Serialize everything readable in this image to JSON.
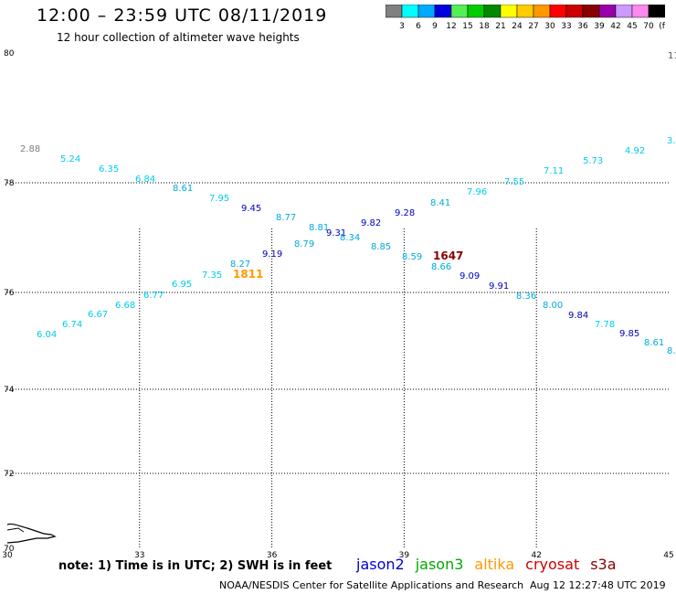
{
  "title": "12:00 – 23:59 UTC 08/11/2019",
  "subtitle": "12 hour collection of altimeter wave heights",
  "legend": {
    "colors": [
      "#808080",
      "#00ffff",
      "#00aaff",
      "#0000dd",
      "#55ee55",
      "#00cc00",
      "#008800",
      "#ffff00",
      "#ffcc00",
      "#ff9900",
      "#ff0000",
      "#cc0000",
      "#880000",
      "#9900aa",
      "#cc99ff",
      "#ff88ee",
      "#000000"
    ],
    "labels": [
      "3",
      "6",
      "9",
      "12",
      "15",
      "18",
      "21",
      "24",
      "27",
      "30",
      "33",
      "36",
      "39",
      "42",
      "45",
      "70",
      "(ft)"
    ]
  },
  "map": {
    "lon_ticks": [
      "30",
      "33",
      "36",
      "39",
      "42",
      "45"
    ],
    "lat_ticks": [
      "80",
      "78",
      "76",
      "74",
      "72",
      "70"
    ],
    "right_edge_label": "11",
    "lon_range": [
      30,
      45
    ],
    "lat_range": [
      70,
      80
    ]
  },
  "chart_data": {
    "type": "scatter",
    "x_axis": "longitude",
    "y_axis": "latitude",
    "points": [
      {
        "lon": 30.3,
        "lat": 77.2,
        "text": "2.88",
        "color": "#808080"
      },
      {
        "lon": 31.2,
        "lat": 76.9,
        "text": "5.24",
        "color": "#00ccee"
      },
      {
        "lon": 32.1,
        "lat": 76.7,
        "text": "6.35",
        "color": "#00ccee"
      },
      {
        "lon": 33.0,
        "lat": 76.55,
        "text": "6.84",
        "color": "#00ccee"
      },
      {
        "lon": 33.9,
        "lat": 76.35,
        "text": "8.61",
        "color": "#00aadd"
      },
      {
        "lon": 34.8,
        "lat": 76.15,
        "text": "7.95",
        "color": "#00ccee"
      },
      {
        "lon": 35.6,
        "lat": 75.95,
        "text": "9.45",
        "color": "#0000bb"
      },
      {
        "lon": 36.5,
        "lat": 75.8,
        "text": "8.77",
        "color": "#00aadd"
      },
      {
        "lon": 37.3,
        "lat": 75.7,
        "text": "8.81",
        "color": "#00aadd"
      },
      {
        "lon": 38.0,
        "lat": 75.6,
        "text": "9.31",
        "color": "#0000bb"
      },
      {
        "lon": 38.7,
        "lat": 75.78,
        "text": "9.82",
        "color": "#0000bb"
      },
      {
        "lon": 39.3,
        "lat": 75.92,
        "text": "9.28",
        "color": "#0000bb"
      },
      {
        "lon": 40.1,
        "lat": 76.1,
        "text": "8.41",
        "color": "#00aadd"
      },
      {
        "lon": 40.9,
        "lat": 76.3,
        "text": "7.96",
        "color": "#00ccee"
      },
      {
        "lon": 41.7,
        "lat": 76.5,
        "text": "7.55",
        "color": "#00ccee"
      },
      {
        "lon": 42.5,
        "lat": 76.75,
        "text": "7.11",
        "color": "#00ccee"
      },
      {
        "lon": 43.3,
        "lat": 76.95,
        "text": "5.73",
        "color": "#00ccee"
      },
      {
        "lon": 44.1,
        "lat": 77.15,
        "text": "4.92",
        "color": "#00ccee"
      },
      {
        "lon": 44.9,
        "lat": 77.3,
        "text": "3.",
        "color": "#00ccee"
      },
      {
        "lon": 30.5,
        "lat": 75.1,
        "text": "6.04",
        "color": "#00ccee"
      },
      {
        "lon": 31.2,
        "lat": 75.25,
        "text": "6.74",
        "color": "#00ccee"
      },
      {
        "lon": 31.9,
        "lat": 75.4,
        "text": "6.67",
        "color": "#00ccee"
      },
      {
        "lon": 32.6,
        "lat": 75.55,
        "text": "6.68",
        "color": "#00ccee"
      },
      {
        "lon": 33.3,
        "lat": 75.72,
        "text": "6.77",
        "color": "#00ccee"
      },
      {
        "lon": 34.0,
        "lat": 75.88,
        "text": "6.95",
        "color": "#00ccee"
      },
      {
        "lon": 34.7,
        "lat": 76.05,
        "text": "7.35",
        "color": "#00ccee"
      },
      {
        "lon": 35.4,
        "lat": 76.25,
        "text": "8.27",
        "color": "#00aadd"
      },
      {
        "lon": 35.3,
        "lat": 76.1,
        "text": "1811",
        "color": "#ff9900",
        "time": true
      },
      {
        "lon": 36.0,
        "lat": 76.45,
        "text": "9.19",
        "color": "#0000bb"
      },
      {
        "lon": 36.8,
        "lat": 76.63,
        "text": "8.79",
        "color": "#00aadd"
      },
      {
        "lon": 37.6,
        "lat": 76.82,
        "text": "8.34",
        "color": "#00aadd"
      },
      {
        "lon": 38.4,
        "lat": 76.95,
        "text": "8.85",
        "color": "#00aadd"
      },
      {
        "lon": 39.2,
        "lat": 77.05,
        "text": "8.59",
        "color": "#00aadd"
      },
      {
        "lon": 39.9,
        "lat": 77.2,
        "text": "8.66",
        "color": "#00aadd"
      },
      {
        "lon": 40.1,
        "lat": 77.05,
        "text": "1647",
        "color": "#880000",
        "time": true
      },
      {
        "lon": 40.6,
        "lat": 77.35,
        "text": "9.09",
        "color": "#0000bb"
      },
      {
        "lon": 41.3,
        "lat": 77.52,
        "text": "9.91",
        "color": "#0000bb"
      },
      {
        "lon": 41.9,
        "lat": 77.68,
        "text": "8.36",
        "color": "#00aadd"
      },
      {
        "lon": 42.6,
        "lat": 77.85,
        "text": "8.00",
        "color": "#00aadd"
      },
      {
        "lon": 43.3,
        "lat": 78.0,
        "text": "9.84",
        "color": "#0000bb"
      },
      {
        "lon": 43.9,
        "lat": 78.15,
        "text": "7.78",
        "color": "#00ccee"
      },
      {
        "lon": 44.5,
        "lat": 78.3,
        "text": "9.85",
        "color": "#0000bb"
      },
      {
        "lon": 45.0,
        "lat": 78.45,
        "text": "8.61",
        "color": "#00aadd"
      },
      {
        "lon": 45.5,
        "lat": 78.6,
        "text": "8.",
        "color": "#00aadd"
      }
    ]
  },
  "note": "note: 1) Time is in UTC; 2) SWH is in feet",
  "satellites": [
    {
      "name": "jason2",
      "color": "#0000cc"
    },
    {
      "name": "jason3",
      "color": "#00aa00"
    },
    {
      "name": "altika",
      "color": "#ff9900"
    },
    {
      "name": "cryosat",
      "color": "#cc0000"
    },
    {
      "name": "s3a",
      "color": "#880000"
    }
  ],
  "credit": "NOAA/NESDIS Center for Satellite Applications and Research",
  "credit_date": "Aug 12 12:27:48 UTC 2019"
}
